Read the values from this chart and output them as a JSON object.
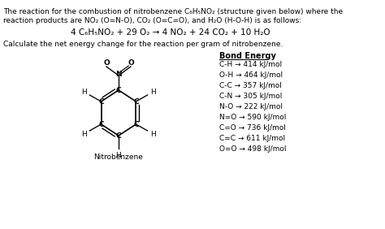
{
  "figsize": [
    4.74,
    2.82
  ],
  "dpi": 100,
  "background_color": "#ffffff",
  "title_text1": "The reaction for the combustion of nitrobenzene C₆H₅NO₂ (structure given below) where the",
  "title_text2": "reaction products are NO₂ (O=N-O), CO₂ (O=C=O), and H₂O (H-O-H) is as follows:",
  "equation": "4 C₆H₅NO₂ + 29 O₂ → 4 NO₂ + 24 CO₂ + 10 H₂O",
  "question": "Calculate the net energy change for the reaction per gram of nitrobenzene.",
  "bond_title": "Bond Energy",
  "bond_energies": [
    "C-H → 414 kJ/mol",
    "O-H → 464 kJ/mol",
    "C-C → 357 kJ/mol",
    "C-N → 305 kJ/mol",
    "N-O → 222 kJ/mol",
    "N=O → 590 kJ/mol",
    "C=O → 736 kJ/mol",
    "C=C → 611 kJ/mol",
    "O=O → 498 kJ/mol"
  ],
  "molecule_label": "Nitrobenzene",
  "text_color": "#000000",
  "font_size_main": 6.5,
  "font_size_eq": 7.5,
  "font_size_bond": 6.5
}
